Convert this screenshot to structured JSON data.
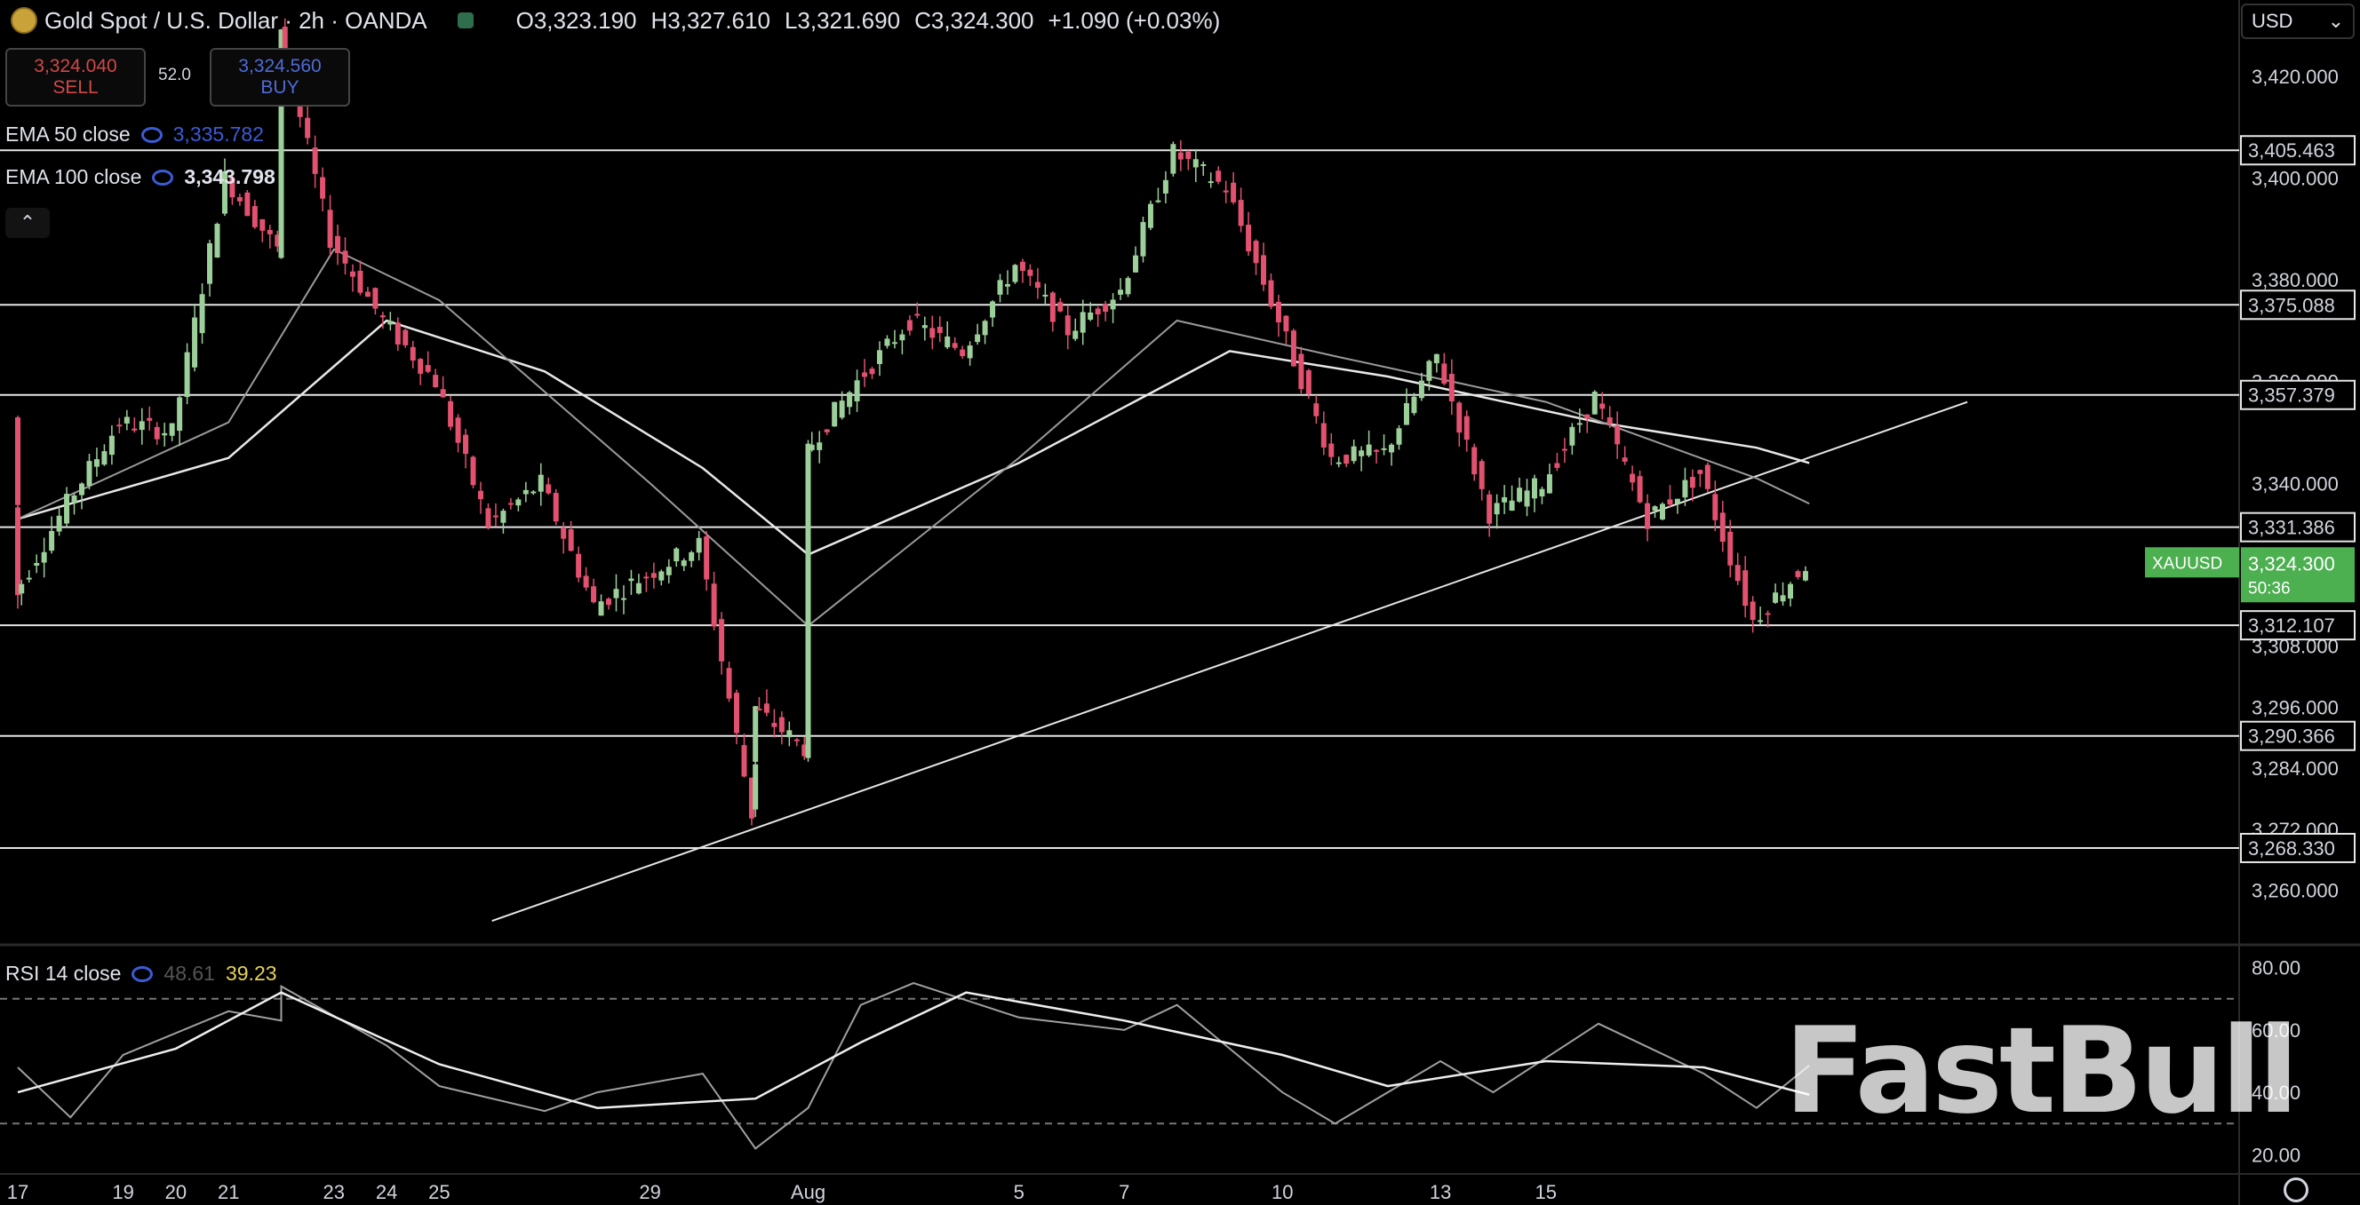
{
  "header": {
    "symbol_title": "Gold Spot / U.S. Dollar · 2h · OANDA",
    "open": "O3,323.190",
    "high": "H3,327.610",
    "low": "L3,321.690",
    "close": "C3,324.300",
    "change": "+1.090 (+0.03%)"
  },
  "trade": {
    "sell_price": "3,324.040",
    "sell_label": "SELL",
    "spread": "52.0",
    "buy_price": "3,324.560",
    "buy_label": "BUY"
  },
  "indicators": {
    "ema50_label": "EMA 50 close",
    "ema50_value": "3,335.782",
    "ema100_label": "EMA 100 close",
    "ema100_value": "3,343.798",
    "rsi_label": "RSI 14 close",
    "rsi_value": "48.61",
    "rsi_ma_value": "39.23"
  },
  "currency_select": "USD",
  "watermark": "FastBull",
  "colors": {
    "up": "#9ccf9a",
    "down": "#e2516f",
    "background": "#000000",
    "text": "#d1d4dc",
    "price_tag": "#4caf50"
  },
  "chart_data": [
    {
      "type": "candlestick",
      "title": "Gold Spot / U.S. Dollar · 2h · OANDA",
      "ylim": [
        3250,
        3435
      ],
      "y_ticks": [
        "3,260.000",
        "3,272.000",
        "3,284.000",
        "3,296.000",
        "3,308.000",
        "3,340.000",
        "3,360.000",
        "3,380.000",
        "3,400.000",
        "3,420.000"
      ],
      "x_ticks": [
        "17",
        "20",
        "23",
        "25",
        "29",
        "Aug",
        "5",
        "7",
        "10",
        "13",
        "15",
        "19",
        "21",
        "24"
      ],
      "levels": [
        {
          "label": "3,405.463",
          "value": 3405.463
        },
        {
          "label": "3,375.088",
          "value": 3375.088
        },
        {
          "label": "3,357.379",
          "value": 3357.379
        },
        {
          "label": "3,331.386",
          "value": 3331.386
        },
        {
          "label": "3,312.107",
          "value": 3312.107
        },
        {
          "label": "3,290.366",
          "value": 3290.366
        },
        {
          "label": "3,268.330",
          "value": 3268.33
        }
      ],
      "trendline": {
        "from": {
          "x": "Jul 26",
          "y": 3254
        },
        "to": {
          "x": "Aug 23",
          "y": 3356
        }
      },
      "last_price": {
        "symbol": "XAUUSD",
        "value": "3,324.300",
        "countdown": "50:36"
      },
      "close_path": [
        {
          "x": "Jul 17",
          "close": 3353
        },
        {
          "x": "Jul 17",
          "close": 3318
        },
        {
          "x": "Jul 18",
          "close": 3336
        },
        {
          "x": "Jul 19",
          "close": 3352
        },
        {
          "x": "Jul 20",
          "close": 3350
        },
        {
          "x": "Jul 21",
          "close": 3400
        },
        {
          "x": "Jul 22",
          "close": 3386
        },
        {
          "x": "Jul 22",
          "close": 3430
        },
        {
          "x": "Jul 23",
          "close": 3388
        },
        {
          "x": "Jul 24",
          "close": 3372
        },
        {
          "x": "Jul 25",
          "close": 3360
        },
        {
          "x": "Jul 26",
          "close": 3332
        },
        {
          "x": "Jul 27",
          "close": 3340
        },
        {
          "x": "Jul 28",
          "close": 3316
        },
        {
          "x": "Jul 29",
          "close": 3322
        },
        {
          "x": "Jul 30",
          "close": 3328
        },
        {
          "x": "Jul 31",
          "close": 3275
        },
        {
          "x": "Jul 31",
          "close": 3296
        },
        {
          "x": "Aug 1",
          "close": 3288
        },
        {
          "x": "Aug 1",
          "close": 3346
        },
        {
          "x": "Aug 2",
          "close": 3360
        },
        {
          "x": "Aug 3",
          "close": 3372
        },
        {
          "x": "Aug 4",
          "close": 3366
        },
        {
          "x": "Aug 5",
          "close": 3383
        },
        {
          "x": "Aug 6",
          "close": 3370
        },
        {
          "x": "Aug 7",
          "close": 3378
        },
        {
          "x": "Aug 8",
          "close": 3405
        },
        {
          "x": "Aug 9",
          "close": 3398
        },
        {
          "x": "Aug 10",
          "close": 3372
        },
        {
          "x": "Aug 11",
          "close": 3345
        },
        {
          "x": "Aug 12",
          "close": 3346
        },
        {
          "x": "Aug 13",
          "close": 3365
        },
        {
          "x": "Aug 14",
          "close": 3334
        },
        {
          "x": "Aug 15",
          "close": 3340
        },
        {
          "x": "Aug 16",
          "close": 3357
        },
        {
          "x": "Aug 17",
          "close": 3333
        },
        {
          "x": "Aug 18",
          "close": 3342
        },
        {
          "x": "Aug 19",
          "close": 3313
        },
        {
          "x": "Aug 20",
          "close": 3324
        }
      ],
      "ema50_path": [
        {
          "x": "Jul 17",
          "value": 3333
        },
        {
          "x": "Jul 21",
          "value": 3352
        },
        {
          "x": "Jul 23",
          "value": 3386
        },
        {
          "x": "Jul 25",
          "value": 3376
        },
        {
          "x": "Jul 29",
          "value": 3340
        },
        {
          "x": "Aug 1",
          "value": 3312
        },
        {
          "x": "Aug 5",
          "value": 3345
        },
        {
          "x": "Aug 8",
          "value": 3372
        },
        {
          "x": "Aug 11",
          "value": 3365
        },
        {
          "x": "Aug 15",
          "value": 3356
        },
        {
          "x": "Aug 19",
          "value": 3341
        },
        {
          "x": "Aug 20",
          "value": 3336
        }
      ],
      "ema100_path": [
        {
          "x": "Jul 17",
          "value": 3333
        },
        {
          "x": "Jul 21",
          "value": 3345
        },
        {
          "x": "Jul 24",
          "value": 3372
        },
        {
          "x": "Jul 27",
          "value": 3362
        },
        {
          "x": "Jul 30",
          "value": 3343
        },
        {
          "x": "Aug 1",
          "value": 3326
        },
        {
          "x": "Aug 5",
          "value": 3344
        },
        {
          "x": "Aug 9",
          "value": 3366
        },
        {
          "x": "Aug 12",
          "value": 3361
        },
        {
          "x": "Aug 16",
          "value": 3352
        },
        {
          "x": "Aug 19",
          "value": 3347
        },
        {
          "x": "Aug 20",
          "value": 3344
        }
      ]
    },
    {
      "type": "line",
      "title": "RSI 14 close",
      "ylim": [
        15,
        85
      ],
      "y_ticks": [
        "80.00",
        "60.00",
        "40.00",
        "20.00"
      ],
      "bands": [
        70,
        30
      ],
      "rsi_path": [
        {
          "x": "Jul 17",
          "value": 48
        },
        {
          "x": "Jul 18",
          "value": 32
        },
        {
          "x": "Jul 19",
          "value": 52
        },
        {
          "x": "Jul 21",
          "value": 66
        },
        {
          "x": "Jul 22",
          "value": 63
        },
        {
          "x": "Jul 22",
          "value": 74
        },
        {
          "x": "Jul 24",
          "value": 55
        },
        {
          "x": "Jul 25",
          "value": 42
        },
        {
          "x": "Jul 27",
          "value": 34
        },
        {
          "x": "Jul 28",
          "value": 40
        },
        {
          "x": "Jul 30",
          "value": 46
        },
        {
          "x": "Jul 31",
          "value": 22
        },
        {
          "x": "Aug 1",
          "value": 35
        },
        {
          "x": "Aug 2",
          "value": 68
        },
        {
          "x": "Aug 3",
          "value": 75
        },
        {
          "x": "Aug 5",
          "value": 64
        },
        {
          "x": "Aug 7",
          "value": 60
        },
        {
          "x": "Aug 8",
          "value": 68
        },
        {
          "x": "Aug 10",
          "value": 40
        },
        {
          "x": "Aug 11",
          "value": 30
        },
        {
          "x": "Aug 13",
          "value": 50
        },
        {
          "x": "Aug 14",
          "value": 40
        },
        {
          "x": "Aug 16",
          "value": 62
        },
        {
          "x": "Aug 18",
          "value": 46
        },
        {
          "x": "Aug 19",
          "value": 35
        },
        {
          "x": "Aug 20",
          "value": 48.61
        }
      ],
      "rsi_ma_path": [
        {
          "x": "Jul 17",
          "value": 40
        },
        {
          "x": "Jul 20",
          "value": 54
        },
        {
          "x": "Jul 22",
          "value": 72
        },
        {
          "x": "Jul 25",
          "value": 49
        },
        {
          "x": "Jul 28",
          "value": 35
        },
        {
          "x": "Jul 31",
          "value": 38
        },
        {
          "x": "Aug 2",
          "value": 56
        },
        {
          "x": "Aug 4",
          "value": 72
        },
        {
          "x": "Aug 7",
          "value": 63
        },
        {
          "x": "Aug 10",
          "value": 52
        },
        {
          "x": "Aug 12",
          "value": 42
        },
        {
          "x": "Aug 15",
          "value": 50
        },
        {
          "x": "Aug 18",
          "value": 48
        },
        {
          "x": "Aug 20",
          "value": 39.23
        }
      ]
    }
  ]
}
